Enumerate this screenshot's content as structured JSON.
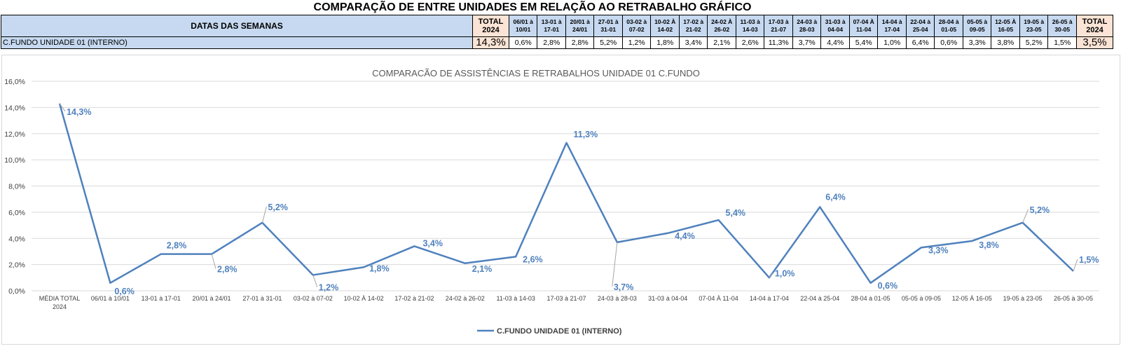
{
  "page_title": "COMPARAÇÃO DE ENTRE UNIDADES EM RELAÇÃO AO RETRABALHO GRÁFICO",
  "table": {
    "row_label": "DATAS DAS SEMANAS",
    "unit_name": "C.FUNDO UNIDADE 01 (INTERNO)",
    "total_header": [
      "TOTAL",
      "2024"
    ],
    "weeks": [
      [
        "06/01 à",
        "10/01"
      ],
      [
        "13-01 à",
        "17-01"
      ],
      [
        "20/01 à",
        "24/01"
      ],
      [
        "27-01 à",
        "31-01"
      ],
      [
        "03-02 à",
        "07-02"
      ],
      [
        "10-02 À",
        "14-02"
      ],
      [
        "17-02 à",
        "21-02"
      ],
      [
        "24-02 À",
        "26-02"
      ],
      [
        "11-03 à",
        "14-03"
      ],
      [
        "17-03 à",
        "21-07"
      ],
      [
        "24-03 à",
        "28-03"
      ],
      [
        "31-03 à",
        "04-04"
      ],
      [
        "07-04 À",
        "11-04"
      ],
      [
        "14-04 à",
        "17-04"
      ],
      [
        "22-04 à",
        "25-04"
      ],
      [
        "28-04 à",
        "01-05"
      ],
      [
        "05-05 à",
        "09-05"
      ],
      [
        "12-05 À",
        "16-05"
      ],
      [
        "19-05 à",
        "23-05"
      ],
      [
        "26-05  à",
        "30-05"
      ]
    ],
    "total_left": "14,3%",
    "week_values": [
      "0,6%",
      "2,8%",
      "2,8%",
      "5,2%",
      "1,2%",
      "1,8%",
      "3,4%",
      "2,1%",
      "2,6%",
      "11,3%",
      "3,7%",
      "4,4%",
      "5,4%",
      "1,0%",
      "6,4%",
      "0,6%",
      "3,3%",
      "3,8%",
      "5,2%",
      "1,5%"
    ],
    "total_right": "3,5%"
  },
  "colors": {
    "line": "#4f81bd",
    "label": "#4f81bd",
    "grid": "#d9d9d9",
    "header_blue": "#c6d9f0",
    "header_peach": "#fbe4d5"
  },
  "chart_data": {
    "type": "line",
    "title": "COMPARACÃO DE ASSISTÊNCIAS E RETRABALHOS UNIDADE 01 C.FUNDO",
    "categories": [
      "MÉDIA TOTAL 2024",
      "06/01 à 10/01",
      "13-01 à 17-01",
      "20/01 à 24/01",
      "27-01 à 31-01",
      "03-02 à 07-02",
      "10-02 À 14-02",
      "17-02 à 21-02",
      "24-02 à 26-02",
      "11-03 à 14-03",
      "17-03 à 21-07",
      "24-03 à 28-03",
      "31-03 à 04-04",
      "07-04 À 11-04",
      "14-04 à 17-04",
      "22-04 à 25-04",
      "28-04 à 01-05",
      "05-05 à 09-05",
      "12-05 À 16-05",
      "19-05 à 23-05",
      "26-05 à 30-05"
    ],
    "series": [
      {
        "name": "C.FUNDO UNIDADE 01 (INTERNO)",
        "values": [
          14.3,
          0.6,
          2.8,
          2.8,
          5.2,
          1.2,
          1.8,
          3.4,
          2.1,
          2.6,
          11.3,
          3.7,
          4.4,
          5.4,
          1.0,
          6.4,
          0.6,
          3.3,
          3.8,
          5.2,
          1.5
        ],
        "labels": [
          "14,3%",
          "0,6%",
          "2,8%",
          "2,8%",
          "5,2%",
          "1,2%",
          "1,8%",
          "3,4%",
          "2,1%",
          "2,6%",
          "11,3%",
          "3,7%",
          "4,4%",
          "5,4%",
          "1,0%",
          "6,4%",
          "0,6%",
          "3,3%",
          "3,8%",
          "5,2%",
          "1,5%"
        ]
      }
    ],
    "ylim": [
      0,
      16
    ],
    "yticks": [
      0,
      2,
      4,
      6,
      8,
      10,
      12,
      14,
      16
    ],
    "ytick_labels": [
      "0,0%",
      "2,0%",
      "4,0%",
      "6,0%",
      "8,0%",
      "10,0%",
      "12,0%",
      "14,0%",
      "16,0%"
    ],
    "grid": true,
    "legend_position": "bottom"
  }
}
